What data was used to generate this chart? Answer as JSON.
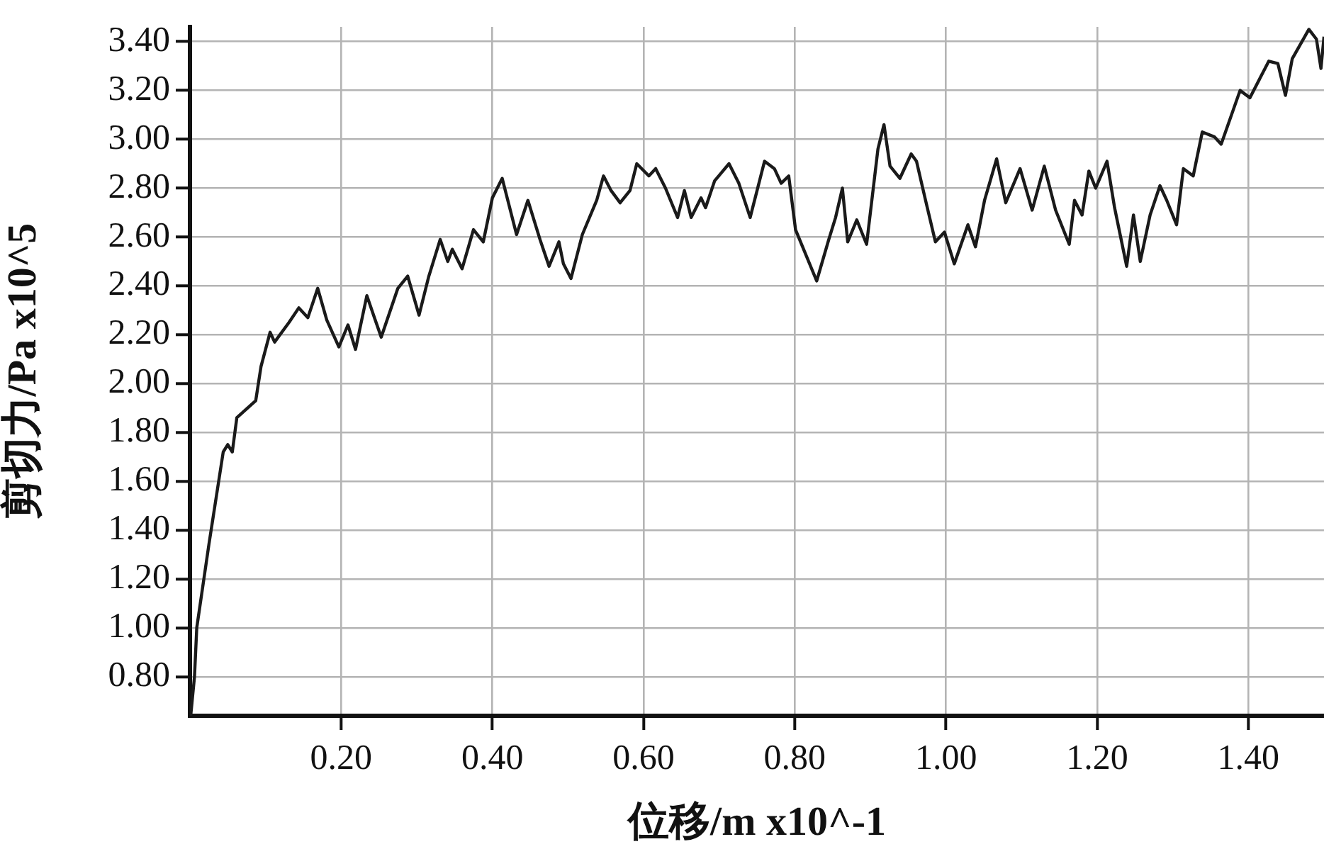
{
  "chart_data": {
    "type": "line",
    "xlabel": "位移/m x10^-1",
    "ylabel": "剪切力/Pa x10^5",
    "xlim": [
      0,
      1.5
    ],
    "xticks": [
      {
        "value": 0.2,
        "label": "0.20"
      },
      {
        "value": 0.4,
        "label": "0.40"
      },
      {
        "value": 0.6,
        "label": "0.60"
      },
      {
        "value": 0.8,
        "label": "0.80"
      },
      {
        "value": 1.0,
        "label": "1.00"
      },
      {
        "value": 1.2,
        "label": "1.20"
      },
      {
        "value": 1.4,
        "label": "1.40"
      }
    ],
    "ylim": [
      0.64,
      3.46
    ],
    "yticks": [
      {
        "value": 0.8,
        "label": "0.80"
      },
      {
        "value": 1.0,
        "label": "1.00"
      },
      {
        "value": 1.2,
        "label": "1.20"
      },
      {
        "value": 1.4,
        "label": "1.40"
      },
      {
        "value": 1.6,
        "label": "1.60"
      },
      {
        "value": 1.8,
        "label": "1.80"
      },
      {
        "value": 2.0,
        "label": "2.00"
      },
      {
        "value": 2.2,
        "label": "2.20"
      },
      {
        "value": 2.4,
        "label": "2.40"
      },
      {
        "value": 2.6,
        "label": "2.60"
      },
      {
        "value": 2.8,
        "label": "2.80"
      },
      {
        "value": 3.0,
        "label": "3.00"
      },
      {
        "value": 3.2,
        "label": "3.20"
      },
      {
        "value": 3.4,
        "label": "3.40"
      }
    ],
    "grid": true,
    "marker": "none",
    "line_style": "solid",
    "x": [
      0.001,
      0.006,
      0.009,
      0.025,
      0.044,
      0.05,
      0.056,
      0.062,
      0.087,
      0.094,
      0.106,
      0.112,
      0.131,
      0.144,
      0.156,
      0.169,
      0.181,
      0.197,
      0.209,
      0.219,
      0.234,
      0.244,
      0.253,
      0.275,
      0.288,
      0.303,
      0.316,
      0.331,
      0.341,
      0.347,
      0.36,
      0.375,
      0.388,
      0.4,
      0.413,
      0.432,
      0.447,
      0.463,
      0.475,
      0.488,
      0.494,
      0.504,
      0.519,
      0.538,
      0.547,
      0.557,
      0.569,
      0.582,
      0.591,
      0.607,
      0.616,
      0.629,
      0.645,
      0.654,
      0.663,
      0.676,
      0.682,
      0.694,
      0.713,
      0.726,
      0.741,
      0.76,
      0.773,
      0.782,
      0.792,
      0.801,
      0.829,
      0.845,
      0.854,
      0.863,
      0.87,
      0.882,
      0.895,
      0.91,
      0.918,
      0.926,
      0.939,
      0.954,
      0.961,
      0.973,
      0.986,
      0.998,
      1.011,
      1.029,
      1.039,
      1.051,
      1.067,
      1.079,
      1.098,
      1.114,
      1.13,
      1.145,
      1.163,
      1.17,
      1.18,
      1.189,
      1.198,
      1.213,
      1.223,
      1.239,
      1.248,
      1.257,
      1.27,
      1.283,
      1.292,
      1.305,
      1.314,
      1.327,
      1.339,
      1.355,
      1.364,
      1.389,
      1.402,
      1.427,
      1.439,
      1.449,
      1.458,
      1.48,
      1.49,
      1.496,
      1.5
    ],
    "series": [
      {
        "color": "#1a1a1a",
        "values": [
          0.64,
          0.8,
          1.0,
          1.34,
          1.72,
          1.75,
          1.72,
          1.86,
          1.93,
          2.07,
          2.21,
          2.17,
          2.25,
          2.31,
          2.27,
          2.39,
          2.26,
          2.15,
          2.24,
          2.14,
          2.36,
          2.27,
          2.19,
          2.39,
          2.44,
          2.28,
          2.44,
          2.59,
          2.5,
          2.55,
          2.47,
          2.63,
          2.58,
          2.76,
          2.84,
          2.61,
          2.75,
          2.59,
          2.48,
          2.58,
          2.49,
          2.43,
          2.61,
          2.75,
          2.85,
          2.79,
          2.74,
          2.79,
          2.9,
          2.85,
          2.88,
          2.8,
          2.68,
          2.79,
          2.68,
          2.76,
          2.72,
          2.83,
          2.9,
          2.82,
          2.68,
          2.91,
          2.88,
          2.82,
          2.85,
          2.63,
          2.42,
          2.59,
          2.68,
          2.8,
          2.58,
          2.67,
          2.57,
          2.96,
          3.06,
          2.89,
          2.84,
          2.94,
          2.91,
          2.75,
          2.58,
          2.62,
          2.49,
          2.65,
          2.56,
          2.75,
          2.92,
          2.74,
          2.88,
          2.71,
          2.89,
          2.71,
          2.57,
          2.75,
          2.69,
          2.87,
          2.8,
          2.91,
          2.72,
          2.48,
          2.69,
          2.5,
          2.69,
          2.81,
          2.75,
          2.65,
          2.88,
          2.85,
          3.03,
          3.01,
          2.98,
          3.2,
          3.17,
          3.32,
          3.31,
          3.18,
          3.33,
          3.45,
          3.41,
          3.29,
          3.42
        ]
      }
    ]
  }
}
